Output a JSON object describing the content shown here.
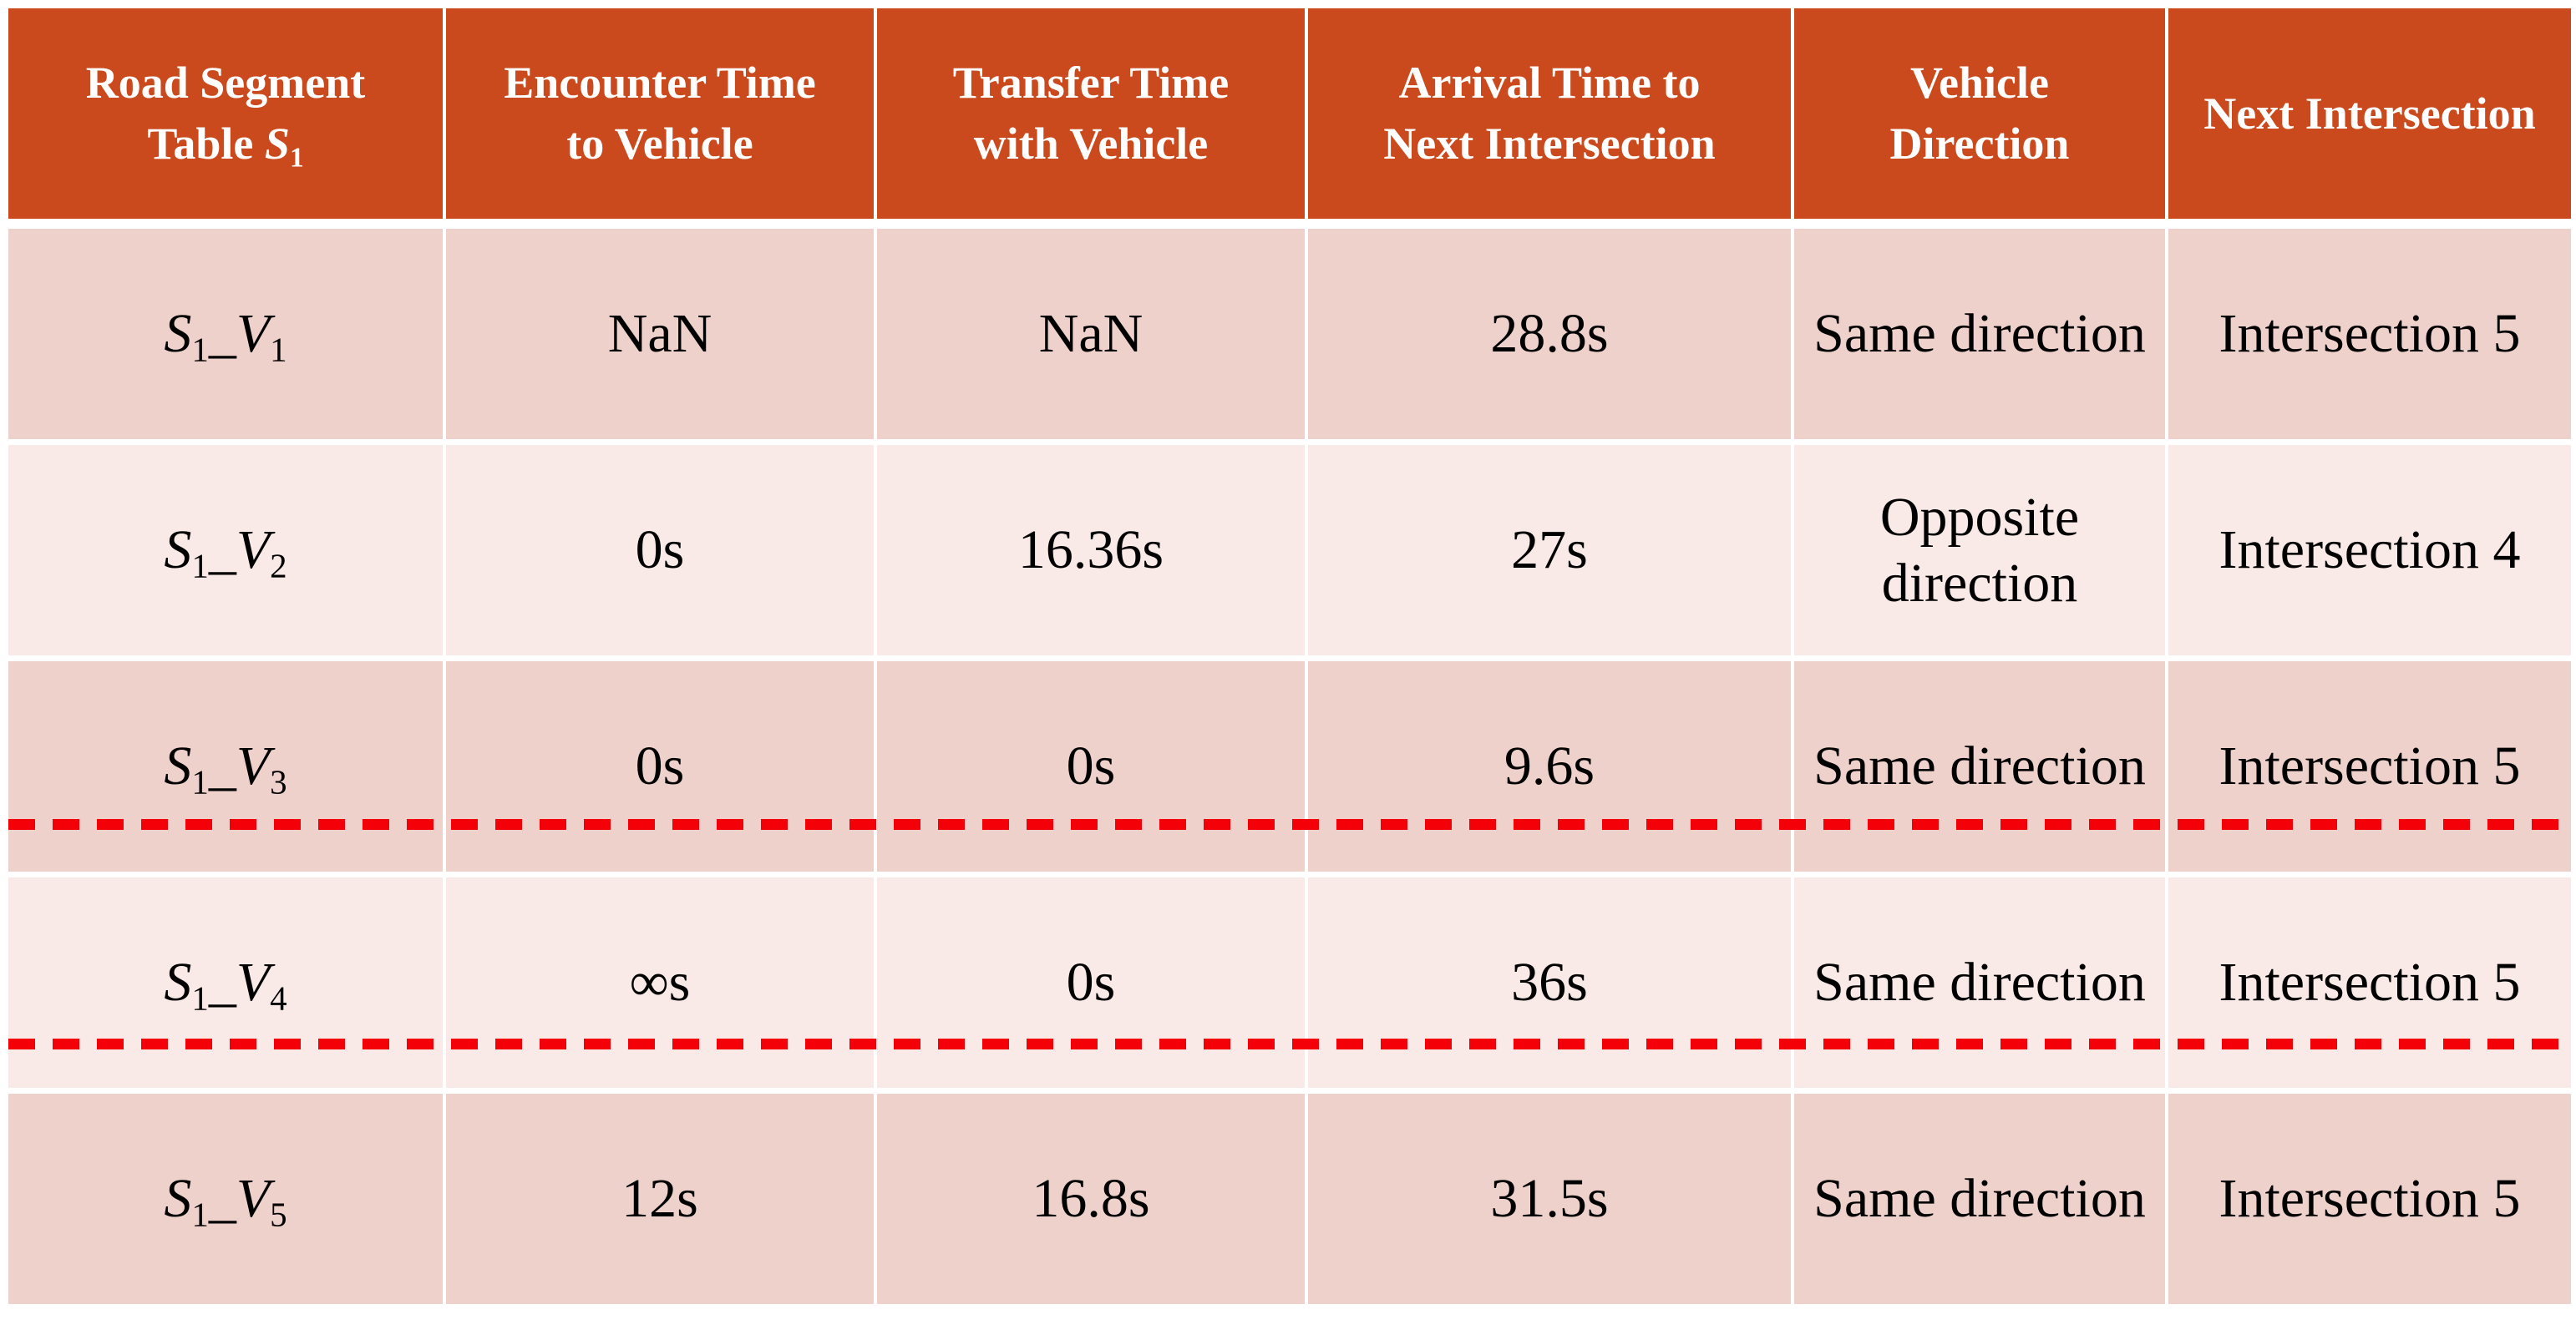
{
  "colors": {
    "header_bg": "#CB4A1D",
    "header_text": "#FFFFFF",
    "row_dark_bg": "#EFD1CB",
    "row_light_bg": "#F9EAE7",
    "body_text": "#000000",
    "dashed_line_red": "#F40008",
    "page_bg": "#FFFFFF"
  },
  "table": {
    "header": {
      "col1": {
        "line1": "Road Segment",
        "line2_prefix": "Table ",
        "var": "S",
        "var_sub": "1"
      },
      "col2": {
        "line1": "Encounter Time",
        "line2": "to Vehicle"
      },
      "col3": {
        "line1": "Transfer Time",
        "line2": "with Vehicle"
      },
      "col4": {
        "line1": "Arrival Time to",
        "line2": "Next Intersection"
      },
      "col5": {
        "line1": "Vehicle",
        "line2": "Direction"
      },
      "col6": {
        "line1": "Next Intersection"
      }
    },
    "rows": [
      {
        "id": {
          "base1": "S",
          "sub1": "1",
          "sep": "_",
          "base2": "V",
          "sub2": "1"
        },
        "encounter_time": "NaN",
        "transfer_time": "NaN",
        "arrival_time": "28.8s",
        "direction": "Same direction",
        "next_intersection": "Intersection 5",
        "shade": "dark"
      },
      {
        "id": {
          "base1": "S",
          "sub1": "1",
          "sep": "_",
          "base2": "V",
          "sub2": "2"
        },
        "encounter_time": "0s",
        "transfer_time": "16.36s",
        "arrival_time": "27s",
        "direction": "Opposite direction",
        "next_intersection": "Intersection 4",
        "shade": "light"
      },
      {
        "id": {
          "base1": "S",
          "sub1": "1",
          "sep": "_",
          "base2": "V",
          "sub2": "3"
        },
        "encounter_time": "0s",
        "transfer_time": "0s",
        "arrival_time": "9.6s",
        "direction": "Same direction",
        "next_intersection": "Intersection 5",
        "shade": "dark"
      },
      {
        "id": {
          "base1": "S",
          "sub1": "1",
          "sep": "_",
          "base2": "V",
          "sub2": "4"
        },
        "encounter_time": "∞s",
        "transfer_time": "0s",
        "arrival_time": "36s",
        "direction": "Same direction",
        "next_intersection": "Intersection 5",
        "shade": "light"
      },
      {
        "id": {
          "base1": "S",
          "sub1": "1",
          "sep": "_",
          "base2": "V",
          "sub2": "5"
        },
        "encounter_time": "12s",
        "transfer_time": "16.8s",
        "arrival_time": "31.5s",
        "direction": "Same direction",
        "next_intersection": "Intersection 5",
        "shade": "dark"
      }
    ],
    "annotations": {
      "dashed_lines": [
        {
          "style": "red-dashed",
          "location": "through bottom of row S1_V3"
        },
        {
          "style": "red-dashed",
          "location": "through bottom of row S1_V4"
        }
      ]
    }
  }
}
